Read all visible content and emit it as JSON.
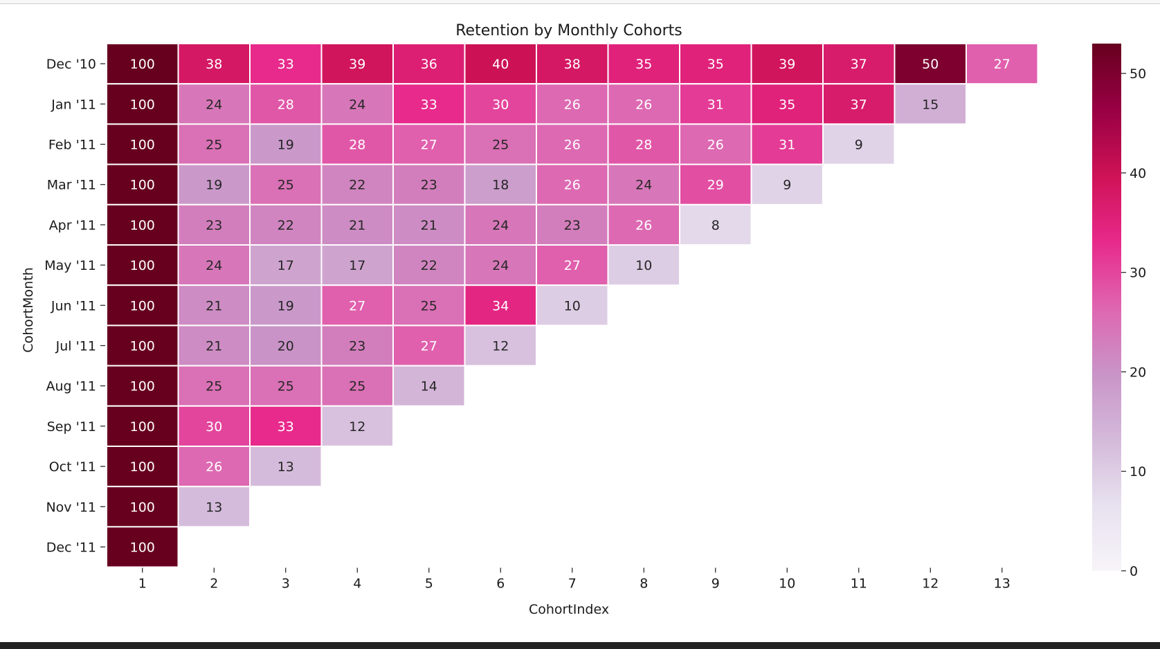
{
  "chart_data": {
    "type": "heatmap",
    "title": "Retention by Monthly Cohorts",
    "xlabel": "CohortIndex",
    "ylabel": "CohortMonth",
    "x_categories": [
      "1",
      "2",
      "3",
      "4",
      "5",
      "6",
      "7",
      "8",
      "9",
      "10",
      "11",
      "12",
      "13"
    ],
    "y_categories": [
      "Dec '10",
      "Jan '11",
      "Feb '11",
      "Mar '11",
      "Apr '11",
      "May '11",
      "Jun '11",
      "Jul '11",
      "Aug '11",
      "Sep '11",
      "Oct '11",
      "Nov '11",
      "Dec '11"
    ],
    "values": [
      [
        100,
        38,
        33,
        39,
        36,
        40,
        38,
        35,
        35,
        39,
        37,
        50,
        27
      ],
      [
        100,
        24,
        28,
        24,
        33,
        30,
        26,
        26,
        31,
        35,
        37,
        15
      ],
      [
        100,
        25,
        19,
        28,
        27,
        25,
        26,
        28,
        26,
        31,
        9
      ],
      [
        100,
        19,
        25,
        22,
        23,
        18,
        26,
        24,
        29,
        9
      ],
      [
        100,
        23,
        22,
        21,
        21,
        24,
        23,
        26,
        8
      ],
      [
        100,
        24,
        17,
        17,
        22,
        24,
        27,
        10
      ],
      [
        100,
        21,
        19,
        27,
        25,
        34,
        10
      ],
      [
        100,
        21,
        20,
        23,
        27,
        12
      ],
      [
        100,
        25,
        25,
        25,
        14
      ],
      [
        100,
        30,
        33,
        12
      ],
      [
        100,
        26,
        13
      ],
      [
        100,
        13
      ],
      [
        100
      ]
    ],
    "colorbar": {
      "range": [
        0,
        53
      ],
      "ticks": [
        "0",
        "10",
        "20",
        "30",
        "40",
        "50"
      ]
    },
    "colormap": [
      "#f7f4f9",
      "#e7e1ef",
      "#d4b9da",
      "#c994c7",
      "#df65b0",
      "#e7298a",
      "#ce1256",
      "#980043",
      "#67001f"
    ],
    "annotations": true,
    "grid": false,
    "legend": "colorbar-right"
  }
}
